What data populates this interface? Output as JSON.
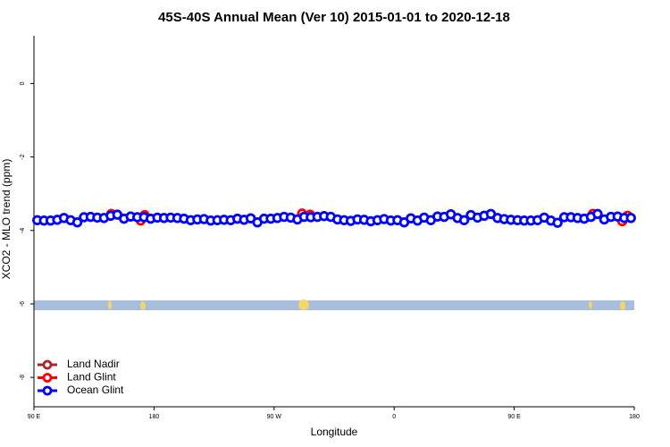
{
  "chart_data": {
    "type": "scatter",
    "title": "45S-40S Annual Mean (Ver 10)   2015-01-01 to 2020-12-18",
    "xlabel": "Longitude",
    "ylabel": "XCO2 - MLO trend (ppm)",
    "xlim": [
      90,
      540
    ],
    "ylim": [
      -8.8,
      1.3
    ],
    "xticks": [
      {
        "value": 90,
        "label": "90 E"
      },
      180,
      {
        "value": 270,
        "label": "90 W"
      },
      {
        "value": 360,
        "label": "0"
      },
      {
        "value": 450,
        "label": "90 E"
      },
      {
        "value": 540,
        "label": "180"
      }
    ],
    "yticks": [
      -8,
      -6,
      -4,
      -2,
      0
    ],
    "legend": "bottom-left",
    "series": [
      {
        "name": "Land Nadir",
        "color": "#a52a2a",
        "x": [
          148,
          509
        ],
        "values": [
          -3.55,
          -3.55
        ]
      },
      {
        "name": "Land Glint",
        "color": "#ff0000",
        "x": [
          148,
          170,
          173,
          291,
          297,
          509,
          531,
          535
        ],
        "values": [
          -3.55,
          -3.73,
          -3.58,
          -3.54,
          -3.57,
          -3.55,
          -3.75,
          -3.6
        ]
      },
      {
        "name": "Ocean Glint",
        "color": "#0000ff",
        "x": [
          92.5,
          97.5,
          102.5,
          107.5,
          112.5,
          117.5,
          122.5,
          127.5,
          132.5,
          137.5,
          142.5,
          147.5,
          152.5,
          157.5,
          162.5,
          167.5,
          172.5,
          177.5,
          182.5,
          187.5,
          192.5,
          197.5,
          202.5,
          207.5,
          212.5,
          217.5,
          222.5,
          227.5,
          232.5,
          237.5,
          242.5,
          247.5,
          252.5,
          257.5,
          262.5,
          267.5,
          272.5,
          277.5,
          282.5,
          287.5,
          292.5,
          297.5,
          302.5,
          307.5,
          312.5,
          317.5,
          322.5,
          327.5,
          332.5,
          337.5,
          342.5,
          347.5,
          352.5,
          357.5,
          362.5,
          367.5,
          372.5,
          377.5,
          382.5,
          387.5,
          392.5,
          397.5,
          402.5,
          407.5,
          412.5,
          417.5,
          422.5,
          427.5,
          432.5,
          437.5,
          442.5,
          447.5,
          452.5,
          457.5,
          462.5,
          467.5,
          472.5,
          477.5,
          482.5,
          487.5,
          492.5,
          497.5,
          502.5,
          507.5,
          512.5,
          517.5,
          522.5,
          527.5,
          532.5,
          537.5
        ],
        "values": [
          -3.72,
          -3.73,
          -3.73,
          -3.71,
          -3.66,
          -3.72,
          -3.78,
          -3.64,
          -3.63,
          -3.65,
          -3.66,
          -3.6,
          -3.57,
          -3.68,
          -3.62,
          -3.64,
          -3.64,
          -3.68,
          -3.65,
          -3.66,
          -3.65,
          -3.66,
          -3.68,
          -3.72,
          -3.7,
          -3.69,
          -3.73,
          -3.72,
          -3.71,
          -3.72,
          -3.68,
          -3.71,
          -3.67,
          -3.78,
          -3.68,
          -3.68,
          -3.66,
          -3.63,
          -3.65,
          -3.7,
          -3.63,
          -3.64,
          -3.63,
          -3.61,
          -3.63,
          -3.7,
          -3.72,
          -3.74,
          -3.7,
          -3.71,
          -3.75,
          -3.72,
          -3.69,
          -3.73,
          -3.72,
          -3.78,
          -3.67,
          -3.73,
          -3.65,
          -3.72,
          -3.62,
          -3.63,
          -3.56,
          -3.66,
          -3.72,
          -3.58,
          -3.65,
          -3.6,
          -3.55,
          -3.66,
          -3.69,
          -3.71,
          -3.72,
          -3.73,
          -3.73,
          -3.72,
          -3.65,
          -3.73,
          -3.79,
          -3.64,
          -3.64,
          -3.66,
          -3.68,
          -3.63,
          -3.55,
          -3.7,
          -3.63,
          -3.62,
          -3.66,
          -3.66
        ]
      }
    ]
  }
}
